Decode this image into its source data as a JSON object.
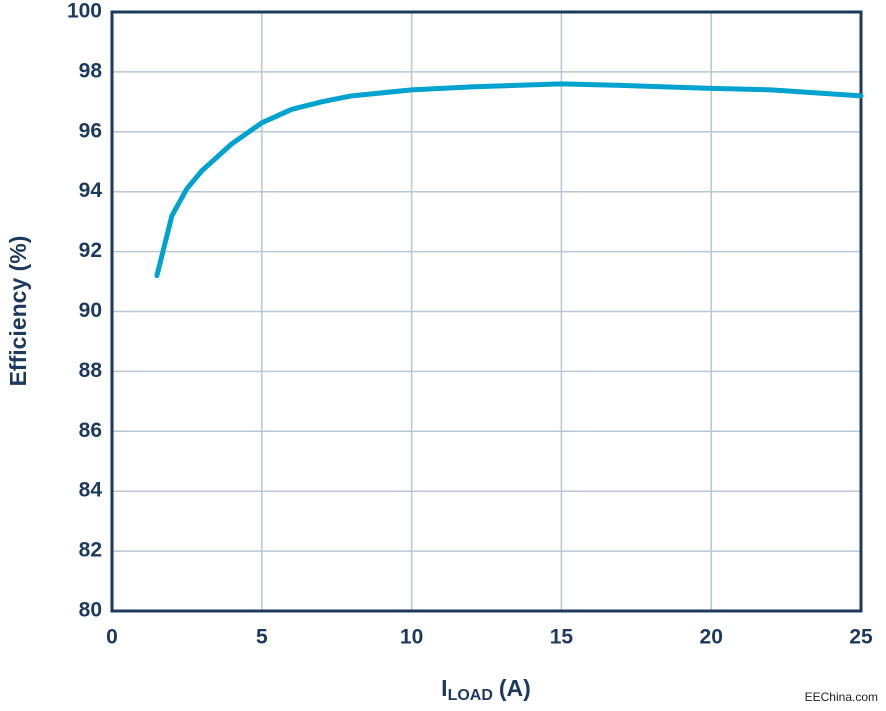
{
  "chart_data": {
    "type": "line",
    "y_label": "Efficiency (%)",
    "x_label": {
      "main": "I",
      "sub": "LOAD",
      "unit": "(A)"
    },
    "watermark": "EEChina.com",
    "xlim": [
      0,
      25
    ],
    "xticks": [
      0,
      5,
      10,
      15,
      20,
      25
    ],
    "ylim": [
      80,
      100
    ],
    "yticks": [
      80,
      82,
      84,
      86,
      88,
      90,
      92,
      94,
      96,
      98,
      100
    ],
    "grid": true,
    "series": [
      {
        "color": "#00a3cf",
        "x": [
          1.5,
          2,
          2.5,
          3,
          4,
          5,
          6,
          7,
          8,
          10,
          12,
          15,
          17,
          20,
          22,
          25
        ],
        "values": [
          91.2,
          93.2,
          94.1,
          94.7,
          95.6,
          96.3,
          96.75,
          97.0,
          97.2,
          97.4,
          97.5,
          97.6,
          97.55,
          97.45,
          97.4,
          97.2
        ]
      }
    ]
  }
}
